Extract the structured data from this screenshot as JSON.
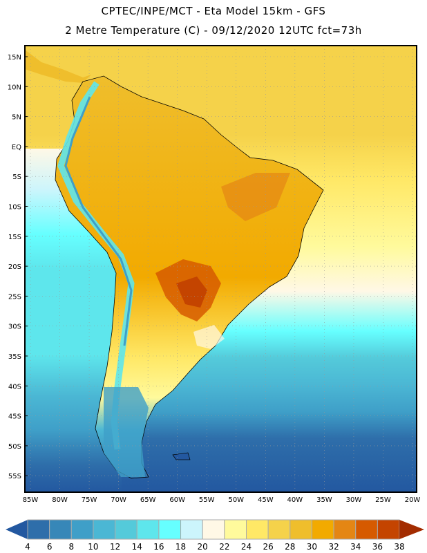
{
  "header": {
    "line1": "CPTEC/INPE/MCT -  Eta Model 15km - GFS",
    "line2": "2 Metre Temperature (C) - 09/12/2020 12UTC fct=73h"
  },
  "map": {
    "variable": "2 Metre Temperature",
    "units": "C",
    "lat_labels": [
      "15N",
      "10N",
      "5N",
      "EQ",
      "5S",
      "10S",
      "15S",
      "20S",
      "25S",
      "30S",
      "35S",
      "40S",
      "45S",
      "50S",
      "55S"
    ],
    "lon_labels": [
      "85W",
      "80W",
      "75W",
      "70W",
      "65W",
      "60W",
      "55W",
      "50W",
      "45W",
      "40W",
      "35W",
      "30W",
      "25W",
      "20W"
    ]
  },
  "colorbar": {
    "labels": [
      "4",
      "6",
      "8",
      "10",
      "12",
      "14",
      "16",
      "18",
      "20",
      "22",
      "24",
      "26",
      "28",
      "30",
      "32",
      "34",
      "36",
      "38"
    ],
    "under_color": "#2358a0",
    "over_color": "#a32c00",
    "colors": [
      "#2e6eaa",
      "#3787b8",
      "#3f9fc8",
      "#4bb7d4",
      "#54cada",
      "#5ee6ec",
      "#66ffff",
      "#ccf5fc",
      "#fff8e6",
      "#fffa9c",
      "#ffe866",
      "#f5d24a",
      "#efbe2c",
      "#f2aa00",
      "#e48614",
      "#d65a00",
      "#c44400"
    ]
  }
}
